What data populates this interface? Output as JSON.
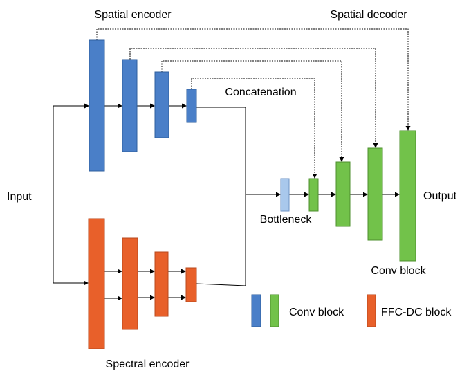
{
  "encoders": {
    "spatial": "Spatial encoder",
    "spectral": "Spectral encoder"
  },
  "decoder": "Spatial decoder",
  "labels": {
    "input": "Input",
    "concatenation": "Concatenation",
    "bottleneck": "Bottleneck",
    "output": "Output",
    "conv_block": "Conv block"
  },
  "legend": {
    "conv_block": "Conv block",
    "ffc_dc_block": "FFC-DC block"
  }
}
